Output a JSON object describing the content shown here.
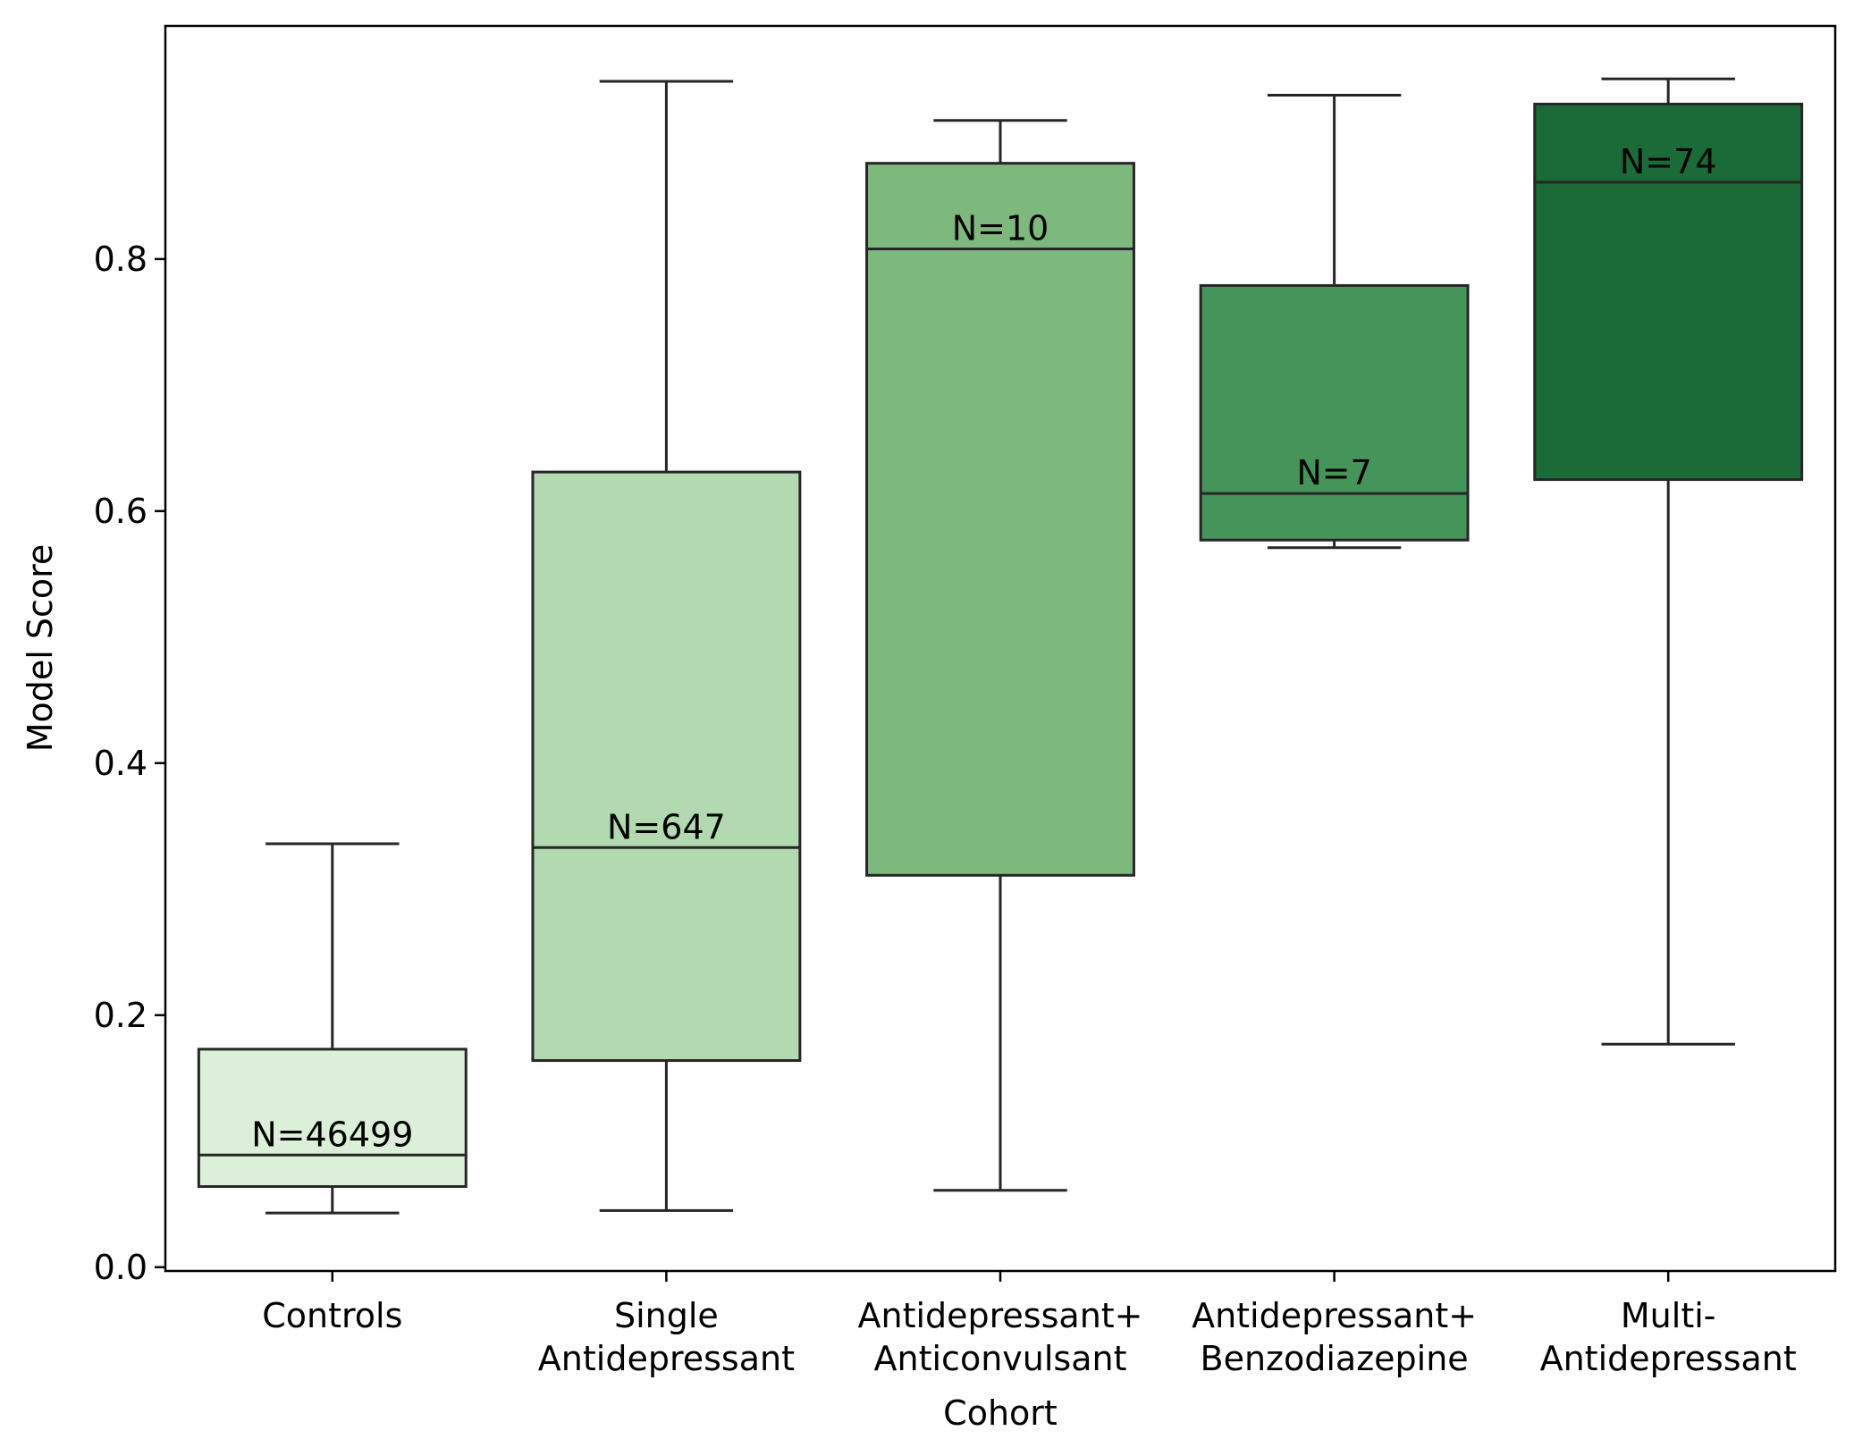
{
  "chart_data": {
    "type": "box",
    "title": "",
    "xlabel": "Cohort",
    "ylabel": "Model Score",
    "ylim": [
      -0.003,
      0.985
    ],
    "yticks": [
      "0.0",
      "0.2",
      "0.4",
      "0.6",
      "0.8"
    ],
    "grid": false,
    "categories": [
      "Controls",
      "Single\nAntidepressant",
      "Antidepressant+\nAnticonvulsant",
      "Antidepressant+\nBenzodiazepine",
      "Multi-\nAntidepressant"
    ],
    "boxes": [
      {
        "category": "Controls",
        "whisker_low": 0.043,
        "q1": 0.064,
        "median": 0.089,
        "q3": 0.173,
        "whisker_high": 0.336,
        "n_label": "N=46499",
        "color": "#dcefd8"
      },
      {
        "category": "Single Antidepressant",
        "whisker_low": 0.045,
        "q1": 0.164,
        "median": 0.333,
        "q3": 0.631,
        "whisker_high": 0.941,
        "n_label": "N=647",
        "color": "#b3d9b0"
      },
      {
        "category": "Antidepressant+ Anticonvulsant",
        "whisker_low": 0.061,
        "q1": 0.311,
        "median": 0.808,
        "q3": 0.876,
        "whisker_high": 0.91,
        "n_label": "N=10",
        "color": "#7db97d"
      },
      {
        "category": "Antidepressant+ Benzodiazepine",
        "whisker_low": 0.571,
        "q1": 0.577,
        "median": 0.614,
        "q3": 0.779,
        "whisker_high": 0.93,
        "n_label": "N=7",
        "color": "#45945a"
      },
      {
        "category": "Multi- Antidepressant",
        "whisker_low": 0.177,
        "q1": 0.625,
        "median": 0.861,
        "q3": 0.923,
        "whisker_high": 0.943,
        "n_label": "N=74",
        "color": "#1a6b38"
      }
    ]
  }
}
